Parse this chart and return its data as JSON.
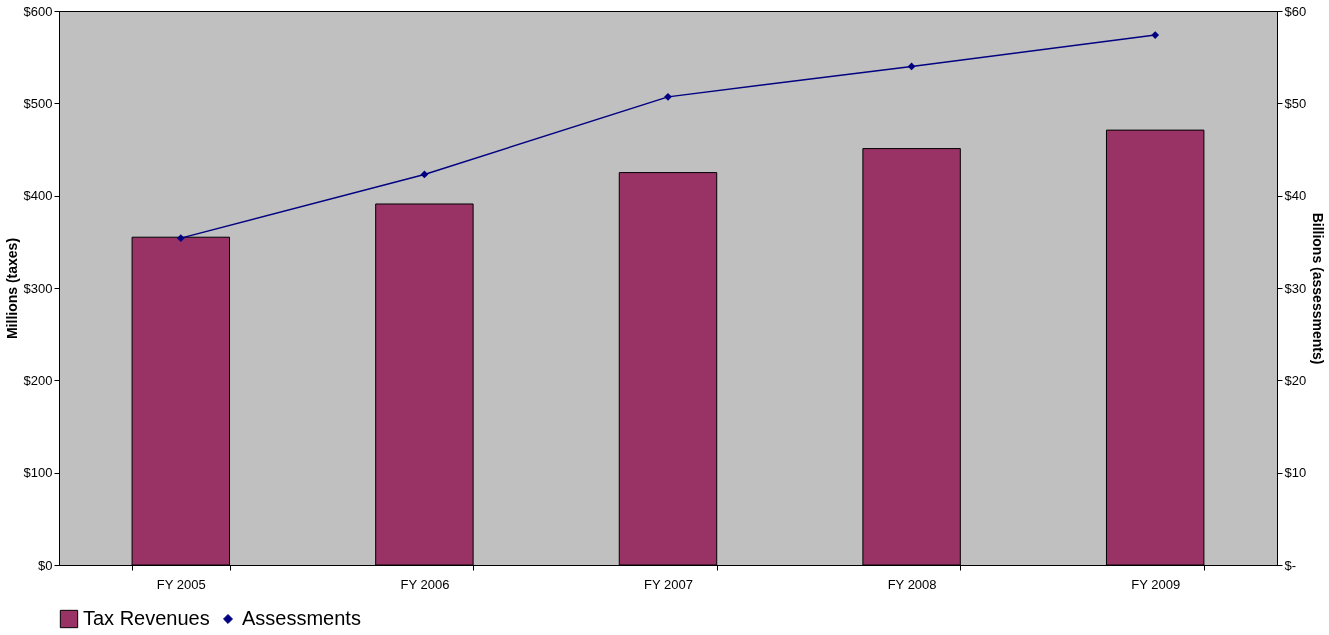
{
  "chart_data": {
    "type": "bar",
    "categories": [
      "FY 2005",
      "FY 2006",
      "FY 2007",
      "FY 2008",
      "FY 2009"
    ],
    "series": [
      {
        "name": "Tax Revenues",
        "color": "#993366",
        "values": [
          355,
          391,
          425,
          451,
          471
        ]
      },
      {
        "name": "Assessments",
        "type": "line",
        "axis": "y2",
        "color": "#000080",
        "values": [
          35.4,
          42.3,
          50.7,
          54.0,
          57.4
        ]
      }
    ],
    "ylabel": "Millions (taxes)",
    "y2label": "Billions (assessments)",
    "ylim": [
      0,
      600
    ],
    "yticks": [
      {
        "value": 0,
        "label": "$0"
      },
      {
        "value": 100,
        "label": "$100"
      },
      {
        "value": 200,
        "label": "$200"
      },
      {
        "value": 300,
        "label": "$300"
      },
      {
        "value": 400,
        "label": "$400"
      },
      {
        "value": 500,
        "label": "$500"
      },
      {
        "value": 600,
        "label": "$600"
      }
    ],
    "y2lim": [
      0,
      60
    ],
    "y2ticks": [
      {
        "value": 0,
        "label": "$-"
      },
      {
        "value": 10,
        "label": "$10"
      },
      {
        "value": 20,
        "label": "$20"
      },
      {
        "value": 30,
        "label": "$30"
      },
      {
        "value": 40,
        "label": "$40"
      },
      {
        "value": 50,
        "label": "$50"
      },
      {
        "value": 60,
        "label": "$60"
      }
    ],
    "marker": "diamond",
    "legend": "bottom",
    "grid": false
  }
}
